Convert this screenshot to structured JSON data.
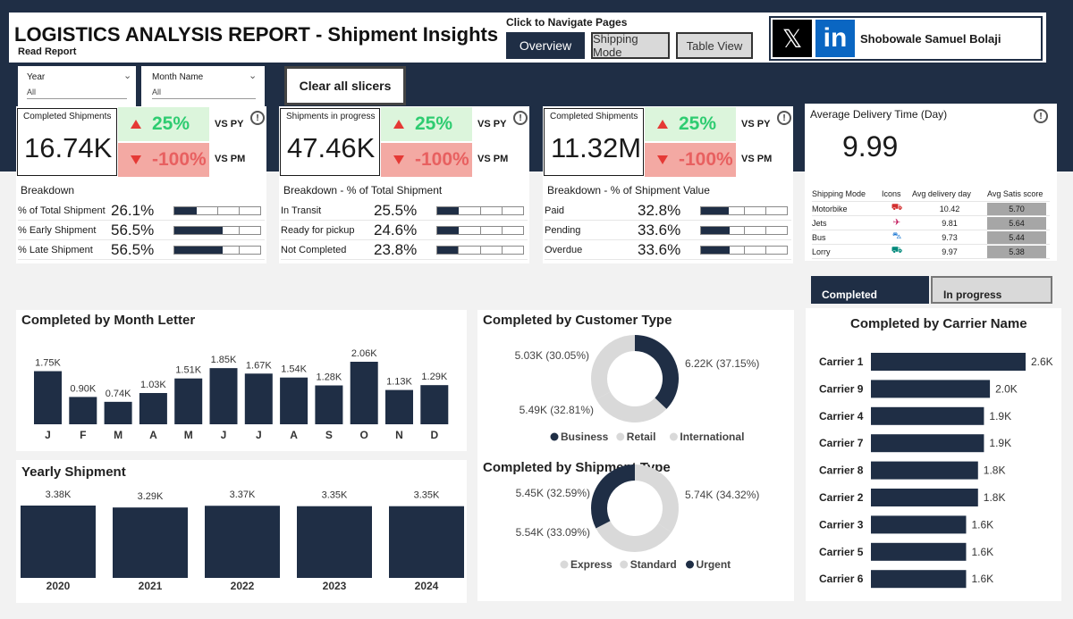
{
  "header": {
    "title": "LOGISTICS ANALYSIS REPORT - Shipment Insights",
    "subtitle": "Read Report",
    "nav_caption": "Click to Navigate Pages",
    "nav": [
      "Overview",
      "Shipping Mode",
      "Table View"
    ],
    "author": "Shobowale Samuel Bolaji"
  },
  "filters": {
    "year_label": "Year",
    "year_value": "All",
    "month_label": "Month Name",
    "month_value": "All",
    "clear_label": "Clear all slicers"
  },
  "kpis": [
    {
      "label": "Completed Shipments",
      "value": "16.74K",
      "up_pct": "25%",
      "up_label": "VS PY",
      "down_pct": "-100%",
      "down_label": "VS PM",
      "breakdown_title": "Breakdown",
      "rows": [
        {
          "name": "% of Total Shipment",
          "value": "26.1%",
          "fill": 0.261
        },
        {
          "name": "% Early Shipment",
          "value": "56.5%",
          "fill": 0.565
        },
        {
          "name": "% Late Shipment",
          "value": "56.5%",
          "fill": 0.565
        }
      ]
    },
    {
      "label": "Shipments in progress",
      "value": "47.46K",
      "up_pct": "25%",
      "up_label": "VS PY",
      "down_pct": "-100%",
      "down_label": "VS PM",
      "breakdown_title": "Breakdown - % of Total Shipment",
      "rows": [
        {
          "name": "In Transit",
          "value": "25.5%",
          "fill": 0.255
        },
        {
          "name": "Ready for pickup",
          "value": "24.6%",
          "fill": 0.246
        },
        {
          "name": "Not Completed",
          "value": "23.8%",
          "fill": 0.238
        }
      ]
    },
    {
      "label": "Completed Shipments",
      "value": "11.32M",
      "up_pct": "25%",
      "up_label": "VS PY",
      "down_pct": "-100%",
      "down_label": "VS PM",
      "breakdown_title": "Breakdown - % of Shipment Value",
      "rows": [
        {
          "name": "Paid",
          "value": "32.8%",
          "fill": 0.328
        },
        {
          "name": "Pending",
          "value": "33.6%",
          "fill": 0.336
        },
        {
          "name": "Overdue",
          "value": "33.6%",
          "fill": 0.336
        }
      ]
    }
  ],
  "delivery": {
    "title": "Average Delivery Time (Day)",
    "value": "9.99",
    "columns": [
      "Shipping Mode",
      "Icons",
      "Avg delivery day",
      "Avg Satis score"
    ],
    "rows": [
      {
        "mode": "Motorbike",
        "icon": "motorbike-icon",
        "day": "10.42",
        "score": "5.70"
      },
      {
        "mode": "Jets",
        "icon": "jet-icon",
        "day": "9.81",
        "score": "5.64"
      },
      {
        "mode": "Bus",
        "icon": "bus-icon",
        "day": "9.73",
        "score": "5.44"
      },
      {
        "mode": "Lorry",
        "icon": "lorry-icon",
        "day": "9.97",
        "score": "5.38"
      }
    ]
  },
  "toggle": {
    "active": "Completed",
    "inactive": "In progress"
  },
  "colors": {
    "navy": "#1f2e45",
    "grey": "#d9d9d9",
    "green": "#2ecc71",
    "red": "#e86060"
  },
  "chart_data": [
    {
      "type": "bar",
      "title": "Completed by Month Letter",
      "categories": [
        "J",
        "F",
        "M",
        "A",
        "M",
        "J",
        "J",
        "A",
        "S",
        "O",
        "N",
        "D"
      ],
      "values": [
        1.75,
        0.9,
        0.74,
        1.03,
        1.51,
        1.85,
        1.67,
        1.54,
        1.28,
        2.06,
        1.13,
        1.29
      ],
      "labels": [
        "1.75K",
        "0.90K",
        "0.74K",
        "1.03K",
        "1.51K",
        "1.85K",
        "1.67K",
        "1.54K",
        "1.28K",
        "2.06K",
        "1.13K",
        "1.29K"
      ]
    },
    {
      "type": "bar",
      "title": "Yearly Shipment",
      "categories": [
        "2020",
        "2021",
        "2022",
        "2023",
        "2024"
      ],
      "values": [
        3.38,
        3.29,
        3.37,
        3.35,
        3.35
      ],
      "labels": [
        "3.38K",
        "3.29K",
        "3.37K",
        "3.35K",
        "3.35K"
      ]
    },
    {
      "type": "pie",
      "title": "Completed by Customer Type",
      "categories": [
        "Business",
        "Retail",
        "International"
      ],
      "values": [
        6.22,
        5.03,
        5.49
      ],
      "labels": [
        "6.22K (37.15%)",
        "5.03K (30.05%)",
        "5.49K (32.81%)"
      ],
      "colors": [
        "#1f2e45",
        "#d9d9d9",
        "#d9d9d9"
      ]
    },
    {
      "type": "pie",
      "title": "Completed by Shipment Type",
      "categories": [
        "Express",
        "Standard",
        "Urgent"
      ],
      "values": [
        5.74,
        5.54,
        5.45
      ],
      "labels": [
        "5.74K (34.32%)",
        "5.54K (33.09%)",
        "5.45K (32.59%)"
      ],
      "colors": [
        "#d9d9d9",
        "#d9d9d9",
        "#1f2e45"
      ]
    },
    {
      "type": "bar",
      "title": "Completed by Carrier Name",
      "orientation": "horizontal",
      "categories": [
        "Carrier 1",
        "Carrier 9",
        "Carrier 4",
        "Carrier 7",
        "Carrier 8",
        "Carrier 2",
        "Carrier 3",
        "Carrier 5",
        "Carrier 6"
      ],
      "values": [
        2.6,
        2.0,
        1.9,
        1.9,
        1.8,
        1.8,
        1.6,
        1.6,
        1.6
      ],
      "labels": [
        "2.6K",
        "2.0K",
        "1.9K",
        "1.9K",
        "1.8K",
        "1.8K",
        "1.6K",
        "1.6K",
        "1.6K"
      ]
    }
  ]
}
